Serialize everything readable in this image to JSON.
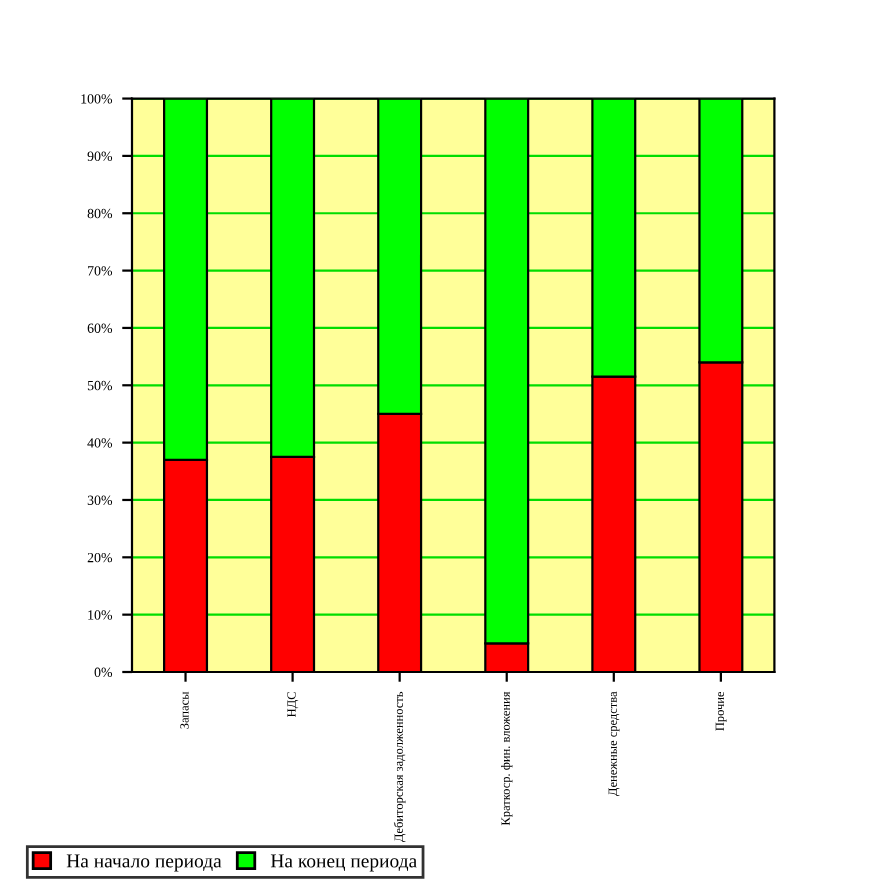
{
  "chart_data": {
    "type": "bar",
    "stacked": true,
    "categories": [
      "Запасы",
      "НДС",
      "Дебиторская задолженность",
      "Краткоср. фин. вложения",
      "Денежные средства",
      "Прочие"
    ],
    "series": [
      {
        "name": "На начало периода",
        "color": "#ff0000",
        "values": [
          37,
          37.5,
          45,
          5,
          51.5,
          54
        ]
      },
      {
        "name": "На конец периода",
        "color": "#00ff00",
        "values": [
          63,
          62.5,
          55,
          95,
          48.5,
          46
        ]
      }
    ],
    "ylim": [
      0,
      100
    ],
    "yticks": [
      {
        "value": 0,
        "label": "0%"
      },
      {
        "value": 10,
        "label": "10%"
      },
      {
        "value": 20,
        "label": "20%"
      },
      {
        "value": 30,
        "label": "30%"
      },
      {
        "value": 40,
        "label": "40%"
      },
      {
        "value": 50,
        "label": "50%"
      },
      {
        "value": 60,
        "label": "60%"
      },
      {
        "value": 70,
        "label": "70%"
      },
      {
        "value": 80,
        "label": "80%"
      },
      {
        "value": 90,
        "label": "90%"
      },
      {
        "value": 100,
        "label": "100%"
      }
    ],
    "grid": "y",
    "legend": "bottom left"
  }
}
